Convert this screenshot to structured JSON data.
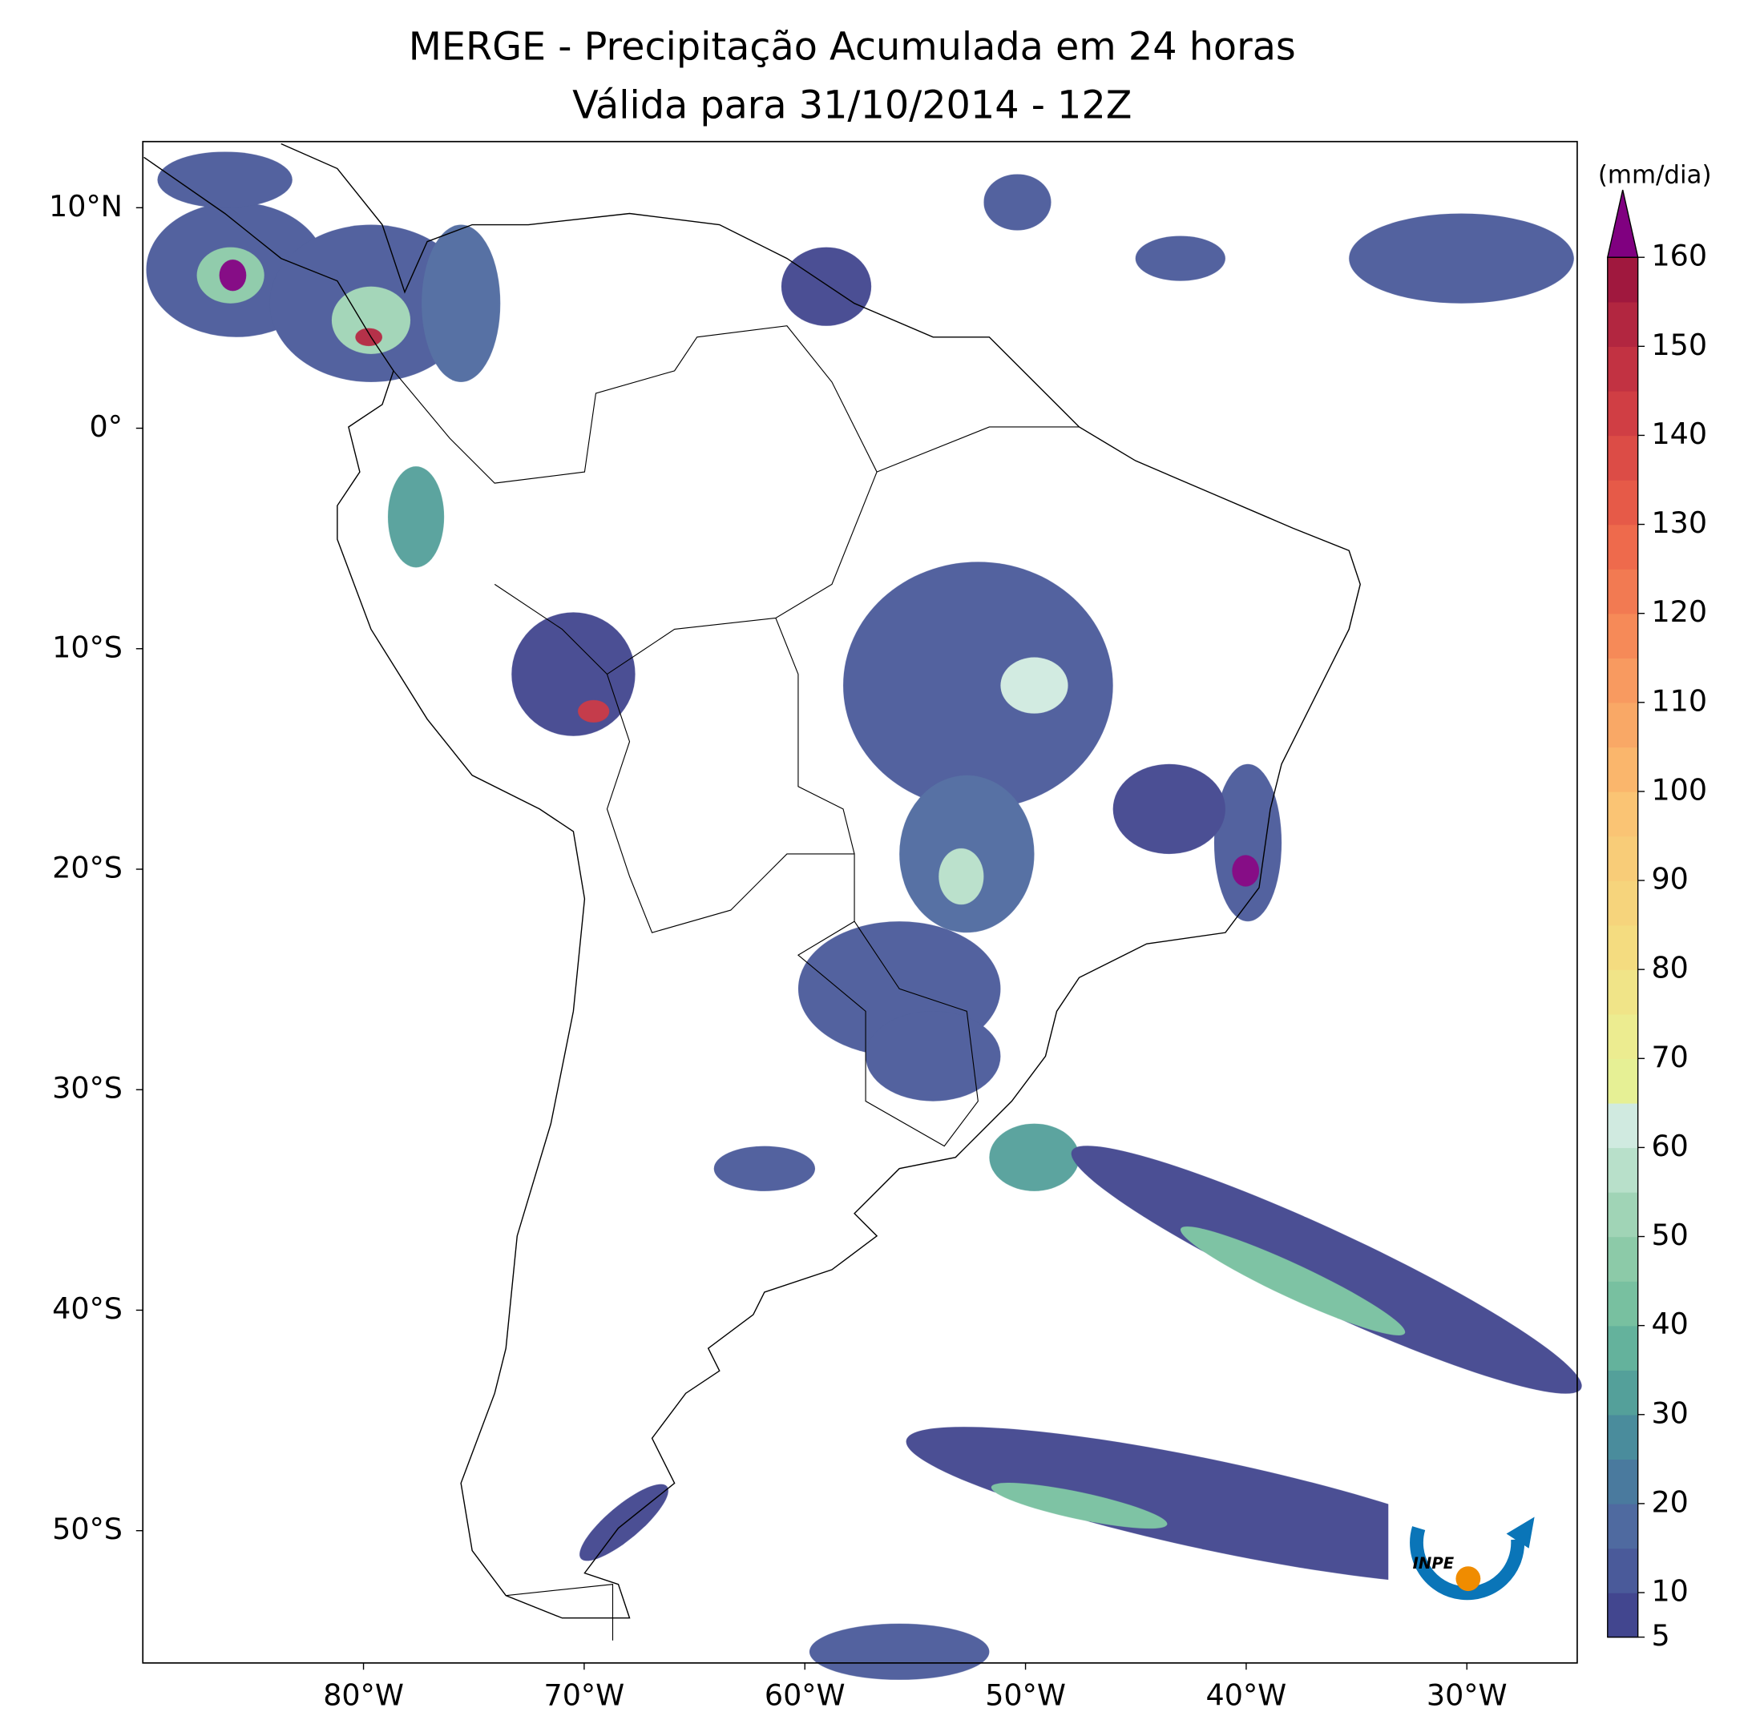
{
  "chart_data": {
    "type": "map",
    "title": "MERGE - Precipitação Acumulada em 24 horas",
    "subtitle": "Válida para 31/10/2014 - 12Z",
    "xlim": [
      -90,
      -25
    ],
    "ylim": [
      -56,
      13
    ],
    "xticks": [
      {
        "value": -80,
        "label": "80°W"
      },
      {
        "value": -70,
        "label": "70°W"
      },
      {
        "value": -60,
        "label": "60°W"
      },
      {
        "value": -50,
        "label": "50°W"
      },
      {
        "value": -40,
        "label": "40°W"
      },
      {
        "value": -30,
        "label": "30°W"
      }
    ],
    "yticks": [
      {
        "value": 10,
        "label": "10°N"
      },
      {
        "value": 0,
        "label": "0°"
      },
      {
        "value": -10,
        "label": "10°S"
      },
      {
        "value": -20,
        "label": "20°S"
      },
      {
        "value": -30,
        "label": "30°S"
      },
      {
        "value": -40,
        "label": "40°S"
      },
      {
        "value": -50,
        "label": "50°S"
      }
    ],
    "colorbar_label": "(mm/dia)",
    "clim": [
      5,
      160
    ],
    "cticks": [
      5,
      10,
      20,
      30,
      40,
      50,
      60,
      70,
      80,
      90,
      100,
      110,
      120,
      130,
      140,
      150,
      160
    ],
    "colors": [
      "#42468f",
      "#4a5a9a",
      "#4f6aa0",
      "#4a7a9e",
      "#4a8c9c",
      "#54a09a",
      "#64b29c",
      "#78c0a0",
      "#8ccaa8",
      "#a0d4b6",
      "#b8e0ca",
      "#d0eae0",
      "#e6f095",
      "#ecec90",
      "#f0e488",
      "#f4dc80",
      "#f6d47c",
      "#f8cc78",
      "#fac474",
      "#fab66c",
      "#f9a866",
      "#f89a60",
      "#f68a58",
      "#f27a52",
      "#ee6a4c",
      "#e65a48",
      "#dc4c46",
      "#d03e44",
      "#c23242",
      "#b22640",
      "#a0183e"
    ],
    "extend_color": "#800080",
    "logo": "INPE"
  }
}
